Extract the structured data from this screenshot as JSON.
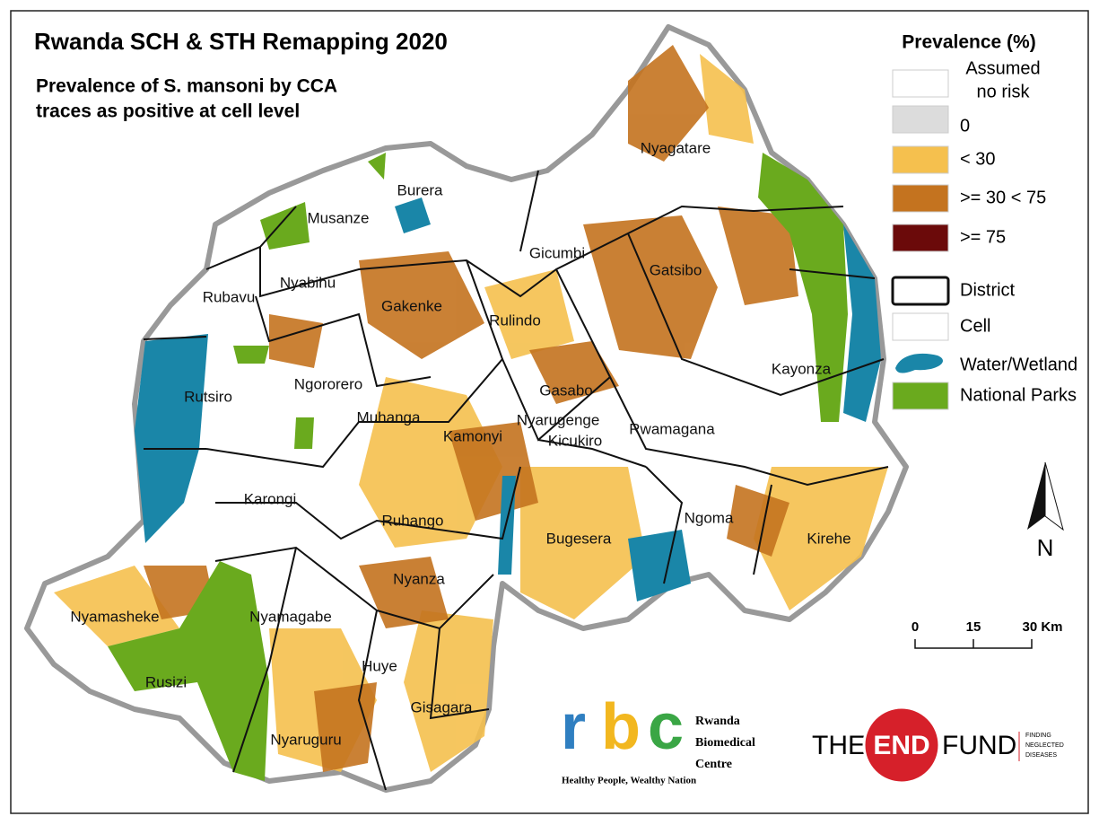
{
  "header": {
    "title": "Rwanda SCH & STH Remapping 2020",
    "subtitle_lines": [
      "Prevalence of S. mansoni by CCA",
      "traces as positive at cell level"
    ]
  },
  "legend": {
    "title": "Prevalence (%)",
    "items": [
      {
        "label_lines": [
          "Assumed",
          "no risk"
        ],
        "color": "#ffffff",
        "kind": "box"
      },
      {
        "label_lines": [
          "0"
        ],
        "color": "#dcdcdc",
        "kind": "box"
      },
      {
        "label_lines": [
          "< 30"
        ],
        "color": "#f5c04e",
        "kind": "box"
      },
      {
        "label_lines": [
          ">= 30 < 75"
        ],
        "color": "#c4731f",
        "kind": "box"
      },
      {
        "label_lines": [
          ">= 75"
        ],
        "color": "#6b0a0a",
        "kind": "box"
      },
      {
        "label_lines": [
          "District"
        ],
        "color": "#ffffff",
        "kind": "district"
      },
      {
        "label_lines": [
          "Cell"
        ],
        "color": "#ffffff",
        "kind": "cell"
      },
      {
        "label_lines": [
          "Water/Wetland"
        ],
        "color": "#1a86a8",
        "kind": "water"
      },
      {
        "label_lines": [
          "National Parks"
        ],
        "color": "#6aaa1e",
        "kind": "box"
      }
    ]
  },
  "districts": [
    "Nyagatare",
    "Burera",
    "Musanze",
    "Gicumbi",
    "Gatsibo",
    "Rubavu",
    "Nyabihu",
    "Gakenke",
    "Rulindo",
    "Rutsiro",
    "Ngororero",
    "Kayonza",
    "Gasabo",
    "Muhanga",
    "Nyarugenge",
    "Kamonyi",
    "Kicukiro",
    "Rwamagana",
    "Karongi",
    "Ruhango",
    "Ngoma",
    "Bugesera",
    "Kirehe",
    "Nyamasheke",
    "Nyanza",
    "Nyamagabe",
    "Rusizi",
    "Huye",
    "Gisagara",
    "Nyaruguru"
  ],
  "north_arrow": "N",
  "scale_bar": [
    "0",
    "15",
    "30 Km"
  ],
  "logos": {
    "rbc": {
      "letters": [
        "r",
        "b",
        "c"
      ],
      "name_lines": [
        "Rwanda",
        "Biomedical",
        "Centre"
      ],
      "tagline": "Healthy People, Wealthy Nation"
    },
    "end_fund": {
      "words": [
        "THE",
        "END",
        "FUND"
      ],
      "tag_lines": [
        "FINDING",
        "NEGLECTED",
        "DISEASES"
      ]
    }
  }
}
